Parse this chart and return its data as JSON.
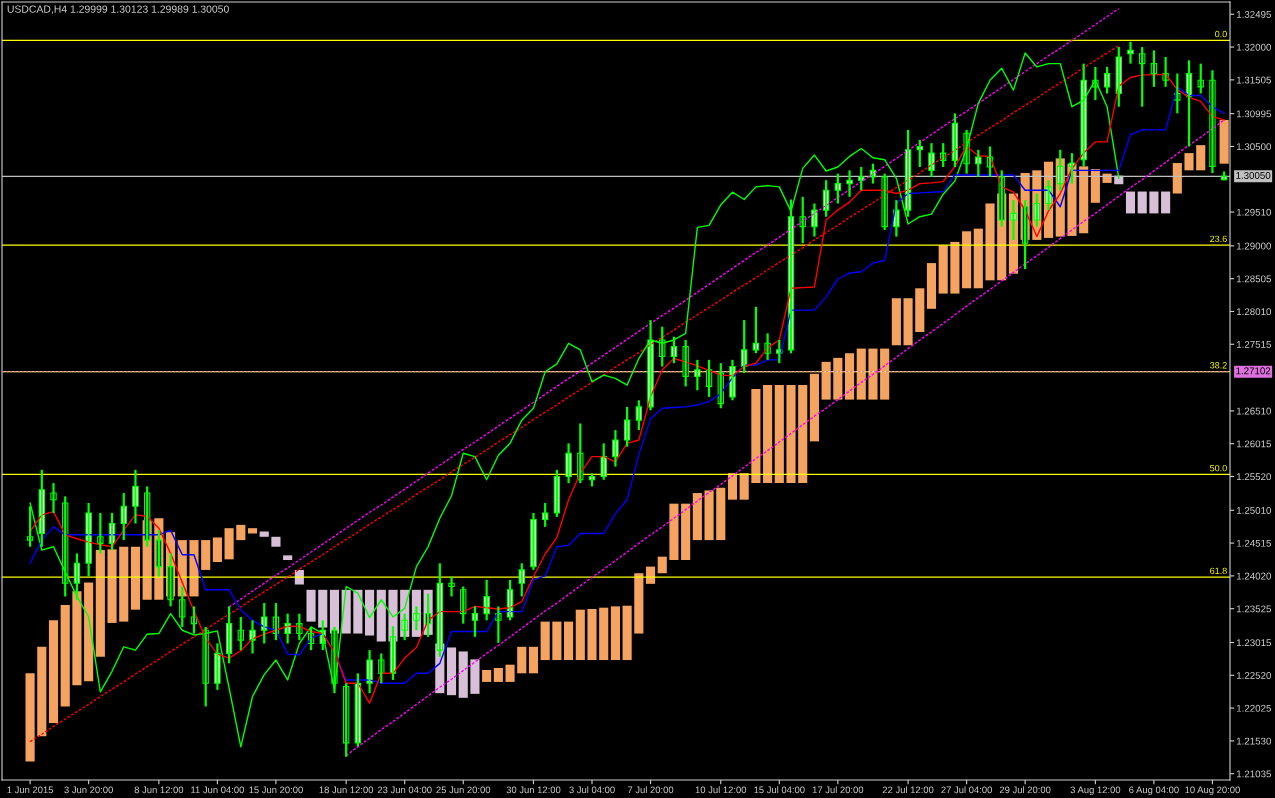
{
  "chart_data": {
    "type": "candlestick",
    "title": "USDCAD,H4 1.29999 1.30123 1.29989 1.30050",
    "categories": [
      "1 Jun 2015",
      null,
      null,
      null,
      null,
      "3 Jun 20:00",
      null,
      null,
      null,
      null,
      null,
      "8 Jun 12:00",
      null,
      null,
      null,
      null,
      "11 Jun 04:00",
      null,
      null,
      null,
      null,
      "15 Jun 20:00",
      null,
      null,
      null,
      null,
      null,
      "18 Jun 12:00",
      null,
      null,
      null,
      null,
      "23 Jun 04:00",
      null,
      null,
      null,
      null,
      "25 Jun 20:00",
      null,
      null,
      null,
      null,
      null,
      "30 Jun 12:00",
      null,
      null,
      null,
      null,
      "3 Jul 04:00",
      null,
      null,
      null,
      null,
      "7 Jul 20:00",
      null,
      null,
      null,
      null,
      null,
      "10 Jul 12:00",
      null,
      null,
      null,
      null,
      "15 Jul 04:00",
      null,
      null,
      null,
      null,
      "17 Jul 20:00",
      null,
      null,
      null,
      null,
      null,
      "22 Jul 12:00",
      null,
      null,
      null,
      null,
      "27 Jul 04:00",
      null,
      null,
      null,
      null,
      "29 Jul 20:00",
      null,
      null,
      null,
      null,
      null,
      "3 Aug 12:00",
      null,
      null,
      null,
      null,
      "6 Aug 04:00",
      null,
      null,
      null,
      null,
      "10 Aug 20:00",
      null
    ],
    "ylim": [
      1.2094,
      1.3268
    ],
    "yticks": [
      1.32495,
      {
        "value": 1.32,
        "label": "1.32000"
      },
      1.31505,
      1.30995,
      {
        "value": 1.305,
        "label": "1.30500"
      },
      {
        "value": 1.2951,
        "label": "1.29510"
      },
      {
        "value": 1.29,
        "label": "1.29000"
      },
      1.28505,
      {
        "value": 1.2801,
        "label": "1.28010"
      },
      1.27515,
      {
        "value": 1.2651,
        "label": "1.26510"
      },
      1.26015,
      {
        "value": 1.2552,
        "label": "1.25520"
      },
      {
        "value": 1.2501,
        "label": "1.25010"
      },
      1.24515,
      {
        "value": 1.2402,
        "label": "1.24020"
      },
      1.23525,
      1.23015,
      {
        "value": 1.2252,
        "label": "1.22520"
      },
      1.22025,
      {
        "value": 1.2153,
        "label": "1.21530"
      },
      1.21035
    ],
    "series": [
      {
        "type": "bar",
        "color": "#f4a460",
        "values": [
          0.0133,
          0.0135,
          0.0155,
          0.0153,
          0.0142,
          0.0149,
          0.0161,
          0.0111,
          0.0113,
          0.0095,
          0.012,
          0.0123,
          0.0097,
          0.0085,
          0.0085,
          0.0045,
          0.0037,
          0.0047,
          0.0023,
          0.0008,
          null,
          null,
          null,
          null,
          null,
          null,
          null,
          null,
          null,
          null,
          null,
          null,
          null,
          null,
          null,
          null,
          null,
          null,
          null,
          0.0018,
          0.0021,
          0.0026,
          0.004,
          0.004,
          0.0058,
          0.0058,
          0.0058,
          0.0076,
          0.0077,
          0.0079,
          0.0081,
          0.0082,
          0.0091,
          0.0026,
          0.0025,
          0.0085,
          0.0085,
          0.0071,
          0.0075,
          0.0079,
          0.004,
          0.004,
          0.0142,
          0.0148,
          0.0148,
          0.0148,
          0.0148,
          0.0102,
          0.0057,
          0.0063,
          0.007,
          0.0077,
          0.0077,
          0.0077,
          0.0071,
          0.0071,
          0.0066,
          0.0069,
          0.0073,
          0.0078,
          0.0086,
          0.009,
          0.0116,
          0.0131,
          0.0121,
          0.0101,
          0.0105,
          0.0115,
          0.0118,
          0.0109,
          0.0101,
          0.0051,
          0.0014,
          null,
          null,
          null,
          null,
          null,
          0.0046,
          0.0026,
          0.0038,
          null,
          0.0066
        ],
        "base": [
          1.2122,
          1.216,
          1.218,
          1.2205,
          1.2237,
          1.2243,
          1.228,
          1.2331,
          1.2333,
          1.2351,
          1.2366,
          1.2366,
          1.2371,
          1.2371,
          1.2371,
          1.2411,
          1.2423,
          1.2427,
          1.2456,
          1.2466,
          null,
          null,
          null,
          null,
          null,
          null,
          null,
          null,
          null,
          null,
          null,
          null,
          null,
          null,
          null,
          null,
          null,
          null,
          null,
          1.2242,
          1.2242,
          1.2242,
          1.2255,
          1.2255,
          1.2275,
          1.2275,
          1.2275,
          1.2275,
          1.2275,
          1.2275,
          1.2275,
          1.2275,
          1.2315,
          1.239,
          1.2406,
          1.2426,
          1.2426,
          1.2456,
          1.2456,
          1.2456,
          1.2517,
          1.2517,
          1.2542,
          1.2542,
          1.2542,
          1.2542,
          1.2542,
          1.2605,
          1.2668,
          1.2668,
          1.2668,
          1.2668,
          1.2668,
          1.2668,
          1.275,
          1.275,
          1.277,
          1.2805,
          1.2828,
          1.2828,
          1.2836,
          1.2836,
          1.2848,
          1.2848,
          1.2858,
          1.2909,
          1.2909,
          1.2912,
          1.2914,
          1.2915,
          1.2919,
          1.2965,
          1.2995,
          null,
          null,
          null,
          null,
          null,
          1.2979,
          1.3014,
          1.3014,
          null,
          1.3024
        ]
      },
      {
        "type": "bar",
        "color": "#d8bfd8",
        "values": [
          null,
          null,
          null,
          null,
          null,
          null,
          null,
          null,
          null,
          null,
          null,
          null,
          null,
          null,
          null,
          null,
          null,
          null,
          null,
          null,
          0.0008,
          0.0015,
          0.0007,
          0.0022,
          0.0048,
          0.0057,
          0.0066,
          0.0066,
          0.0066,
          0.0069,
          0.0078,
          0.0078,
          0.0071,
          0.0071,
          0.0068,
          0.0075,
          0.0072,
          0.007,
          0.0052,
          null,
          null,
          null,
          null,
          null,
          null,
          null,
          null,
          null,
          null,
          null,
          null,
          null,
          null,
          null,
          null,
          null,
          null,
          null,
          null,
          null,
          null,
          null,
          null,
          null,
          null,
          null,
          null,
          null,
          null,
          null,
          null,
          null,
          null,
          null,
          null,
          null,
          null,
          null,
          null,
          null,
          null,
          null,
          null,
          null,
          null,
          null,
          null,
          null,
          null,
          null,
          null,
          null,
          null,
          0.0013,
          0.0033,
          0.0033,
          0.0033,
          0.0033,
          null,
          null,
          null,
          null,
          null
        ],
        "base": [
          null,
          null,
          null,
          null,
          null,
          null,
          null,
          null,
          null,
          null,
          null,
          null,
          null,
          null,
          null,
          null,
          null,
          null,
          null,
          null,
          1.2461,
          1.2446,
          1.2426,
          1.2389,
          1.2333,
          1.2324,
          1.2315,
          1.2315,
          1.2315,
          1.2312,
          1.2303,
          1.2303,
          1.231,
          1.231,
          1.2313,
          1.2225,
          1.2222,
          1.2218,
          1.2224,
          null,
          null,
          null,
          null,
          null,
          null,
          null,
          null,
          null,
          null,
          null,
          null,
          null,
          null,
          null,
          null,
          null,
          null,
          null,
          null,
          null,
          null,
          null,
          null,
          null,
          null,
          null,
          null,
          null,
          null,
          null,
          null,
          null,
          null,
          null,
          null,
          null,
          null,
          null,
          null,
          null,
          null,
          null,
          null,
          null,
          null,
          null,
          null,
          null,
          null,
          null,
          null,
          null,
          null,
          1.2993,
          1.2949,
          1.2949,
          1.2949,
          1.2949,
          null,
          null,
          null,
          null,
          null
        ]
      },
      {
        "type": "line",
        "color": "#ff0000",
        "line_style": "dashed",
        "values": [
          1.2152,
          1.2163,
          1.2175,
          1.2186,
          1.2197,
          1.2208,
          1.222,
          1.2231,
          1.2242,
          1.2254,
          1.2265,
          1.2276,
          1.2288,
          1.2299,
          1.231,
          1.2321,
          1.2333,
          1.2344,
          1.2355,
          1.2367,
          1.2378,
          1.2389,
          1.24,
          1.2412,
          1.2423,
          1.2434,
          1.2446,
          1.2457,
          1.2468,
          1.248,
          1.2491,
          1.2502,
          1.2513,
          1.2525,
          1.2536,
          1.2547,
          1.2559,
          1.257,
          1.2581,
          1.2592,
          1.2604,
          1.2615,
          1.2626,
          1.2638,
          1.2649,
          1.266,
          1.2672,
          1.2683,
          1.2694,
          1.2705,
          1.2717,
          1.2728,
          1.2739,
          1.2751,
          1.2762,
          1.2773,
          1.2785,
          1.2796,
          1.2807,
          1.2818,
          1.283,
          1.2841,
          1.2852,
          1.2864,
          1.2875,
          1.2886,
          1.2897,
          1.2909,
          1.292,
          1.2931,
          1.2943,
          1.2954,
          1.2965,
          1.2977,
          1.2988,
          1.2999,
          1.301,
          1.3022,
          1.3033,
          1.3044,
          1.3056,
          1.3067,
          1.3078,
          1.3089,
          1.3101,
          1.3112,
          1.3123,
          1.3135,
          1.3146,
          1.3157,
          1.3169,
          1.318,
          1.3191,
          1.3202,
          null,
          null,
          null,
          null,
          null,
          null,
          null,
          null,
          null
        ]
      },
      {
        "type": "line",
        "color": "#ff00ff",
        "line_style": "dashed",
        "values": [
          null,
          null,
          null,
          null,
          null,
          null,
          null,
          null,
          null,
          null,
          null,
          null,
          null,
          null,
          null,
          null,
          null,
          1.2355,
          1.2367,
          1.2379,
          1.2391,
          1.2403,
          1.2414,
          1.2426,
          1.2438,
          1.245,
          1.2462,
          1.2474,
          1.2486,
          1.2498,
          1.2509,
          1.2521,
          1.2533,
          1.2545,
          1.2557,
          1.2569,
          1.2581,
          1.2593,
          1.2604,
          1.2616,
          1.2628,
          1.264,
          1.2652,
          1.2664,
          1.2676,
          1.2688,
          1.27,
          1.2711,
          1.2723,
          1.2735,
          1.2747,
          1.2759,
          1.2771,
          1.2783,
          1.2795,
          1.2806,
          1.2818,
          1.283,
          1.2842,
          1.2854,
          1.2866,
          1.2878,
          1.289,
          1.2901,
          1.2913,
          1.2925,
          1.2937,
          1.2949,
          1.2961,
          1.2973,
          1.2985,
          1.2997,
          1.3008,
          1.302,
          1.3032,
          1.3044,
          1.3056,
          1.3068,
          1.308,
          1.3092,
          1.3103,
          1.3115,
          1.3127,
          1.3139,
          1.3151,
          1.3163,
          1.3175,
          1.3187,
          1.3198,
          1.321,
          1.3222,
          1.3234,
          1.3246,
          1.3258,
          null,
          null,
          null,
          null,
          null,
          null,
          null,
          null,
          null
        ]
      },
      {
        "type": "line",
        "color": "#ff00ff",
        "line_style": "dashed",
        "values": [
          null,
          null,
          null,
          null,
          null,
          null,
          null,
          null,
          null,
          null,
          null,
          null,
          null,
          null,
          null,
          null,
          null,
          null,
          null,
          null,
          null,
          null,
          null,
          null,
          null,
          null,
          null,
          1.2131,
          1.2144,
          1.2157,
          1.217,
          1.2182,
          1.2195,
          1.2208,
          1.2221,
          1.2234,
          1.2246,
          1.2259,
          1.2272,
          1.2285,
          1.2297,
          1.231,
          1.2323,
          1.2336,
          1.2349,
          1.2361,
          1.2374,
          1.2387,
          1.24,
          1.2412,
          1.2425,
          1.2438,
          1.2451,
          1.2464,
          1.2476,
          1.2489,
          1.2502,
          1.2515,
          1.2528,
          1.254,
          1.2553,
          1.2566,
          1.2579,
          1.2591,
          1.2604,
          1.2617,
          1.263,
          1.2643,
          1.2655,
          1.2668,
          1.2681,
          1.2694,
          1.2706,
          1.2719,
          1.2732,
          1.2745,
          1.2758,
          1.277,
          1.2783,
          1.2796,
          1.2809,
          1.2822,
          1.2834,
          1.2847,
          1.286,
          1.2873,
          1.2885,
          1.2898,
          1.2911,
          1.2924,
          1.2937,
          1.2949,
          1.2962,
          1.2975,
          1.2988,
          1.3,
          1.3013,
          1.3026,
          1.3039,
          1.3052,
          1.3064,
          1.3077,
          1.309
        ]
      },
      {
        "type": "line",
        "color": "#00ff00",
        "values": [
          1.2512,
          1.2441,
          1.2446,
          1.2408,
          1.2371,
          1.234,
          1.2227,
          1.2258,
          1.2295,
          1.229,
          1.2314,
          1.2315,
          1.2345,
          1.232,
          1.2313,
          1.2315,
          1.2319,
          1.2233,
          1.2144,
          1.222,
          1.2253,
          1.2275,
          1.2245,
          1.23,
          1.2325,
          1.2315,
          1.223,
          1.2386,
          1.2376,
          1.2339,
          1.2366,
          1.234,
          1.2353,
          1.2416,
          1.2446,
          1.2489,
          1.2523,
          1.2587,
          1.2582,
          1.2547,
          1.2584,
          1.2602,
          1.2637,
          1.2655,
          1.271,
          1.2722,
          1.2753,
          1.2743,
          1.2695,
          1.2705,
          1.27,
          1.269,
          1.273,
          1.2758,
          1.2753,
          1.2758,
          1.2768,
          1.2928,
          1.2931,
          1.2962,
          1.2981,
          1.297,
          1.2989,
          1.2991,
          1.2989,
          1.2952,
          1.3017,
          1.3037,
          1.3013,
          1.3019,
          1.3035,
          1.3047,
          1.3033,
          1.303,
          1.3002,
          1.2933,
          1.2944,
          1.2948,
          1.2978,
          1.2998,
          1.3047,
          1.3115,
          1.315,
          1.3168,
          1.3135,
          1.3191,
          1.317,
          1.3175,
          1.3175,
          1.311,
          1.312,
          1.315,
          1.311,
          1.3002,
          null,
          null,
          null,
          null,
          null,
          null,
          null,
          null,
          null
        ]
      },
      {
        "type": "line",
        "color": "#0000ff",
        "values": [
          1.2421,
          1.2456,
          1.2476,
          1.2464,
          1.2464,
          1.2464,
          1.2464,
          1.2464,
          1.2464,
          1.2464,
          1.2464,
          1.2464,
          1.2471,
          1.2434,
          1.2434,
          1.2381,
          1.2381,
          1.2381,
          1.2351,
          1.2335,
          1.2325,
          1.232,
          1.2284,
          1.2283,
          1.2308,
          1.2315,
          1.2288,
          1.2245,
          1.2245,
          1.2245,
          1.224,
          1.224,
          1.224,
          1.2255,
          1.2255,
          1.227,
          1.2318,
          1.2318,
          1.2318,
          1.2318,
          1.2348,
          1.2348,
          1.2348,
          1.2396,
          1.2402,
          1.2446,
          1.2448,
          1.2466,
          1.2466,
          1.2466,
          1.2496,
          1.2517,
          1.2585,
          1.2639,
          1.2655,
          1.2656,
          1.2657,
          1.266,
          1.2665,
          1.2677,
          1.2701,
          1.272,
          1.272,
          1.2728,
          1.2728,
          1.2803,
          1.2803,
          1.2803,
          1.2823,
          1.285,
          1.2859,
          1.2861,
          1.2874,
          1.2878,
          1.2964,
          1.2979,
          1.298,
          1.2981,
          1.2982,
          1.3007,
          1.3007,
          1.3007,
          1.3007,
          1.3007,
          1.3007,
          1.2984,
          1.2984,
          1.2984,
          1.2959,
          1.3014,
          1.3014,
          1.3014,
          1.3014,
          1.3014,
          1.3068,
          1.3075,
          1.3075,
          1.3075,
          1.314,
          1.3127,
          1.3127,
          1.311,
          1.31
        ]
      },
      {
        "type": "line",
        "color": "#ff0000",
        "values": [
          1.2469,
          1.2494,
          1.2499,
          1.2464,
          1.2458,
          1.2453,
          1.2449,
          1.2446,
          1.2471,
          1.2494,
          1.2492,
          1.2474,
          1.2436,
          1.2392,
          1.2349,
          1.2308,
          1.2284,
          1.2278,
          1.2289,
          1.2307,
          1.2314,
          1.232,
          1.2326,
          1.2326,
          1.2318,
          1.2315,
          1.2287,
          1.224,
          1.224,
          1.221,
          1.2255,
          1.2255,
          1.2278,
          1.2294,
          1.2335,
          1.2348,
          1.2348,
          1.2348,
          1.2356,
          1.2354,
          1.2352,
          1.2354,
          1.2363,
          1.2401,
          1.2435,
          1.246,
          1.2517,
          1.2557,
          1.2582,
          1.2582,
          1.2574,
          1.2602,
          1.2607,
          1.2672,
          1.2713,
          1.273,
          1.2725,
          1.2719,
          1.2712,
          1.2705,
          1.2704,
          1.2718,
          1.2723,
          1.2746,
          1.2758,
          1.2836,
          1.2837,
          1.2838,
          1.2939,
          1.2954,
          1.2966,
          1.2984,
          1.2984,
          1.2984,
          1.2979,
          1.2984,
          1.2994,
          1.2995,
          1.2997,
          1.302,
          1.305,
          1.3036,
          1.3035,
          1.2989,
          1.2981,
          1.2954,
          1.2914,
          1.2953,
          1.2979,
          1.3017,
          1.304,
          1.3057,
          1.3057,
          1.3141,
          1.3154,
          1.3158,
          1.3158,
          1.3159,
          1.3136,
          1.3124,
          1.3118,
          1.3095,
          1.309
        ]
      },
      {
        "color": "#00ff00",
        "ohlc": [
          [
            1.2461,
            1.2507,
            1.2446,
            1.2456
          ],
          [
            1.2466,
            1.2562,
            1.2446,
            1.2532
          ],
          [
            1.2527,
            1.2542,
            1.2497,
            1.2517
          ],
          [
            1.2512,
            1.2522,
            1.2371,
            1.2391
          ],
          [
            1.2391,
            1.2436,
            1.2366,
            1.2421
          ],
          [
            1.2421,
            1.2512,
            1.2401,
            1.2497
          ],
          [
            1.2461,
            1.2497,
            1.2436,
            1.2451
          ],
          [
            1.2451,
            1.2497,
            1.2441,
            1.2481
          ],
          [
            1.2481,
            1.2527,
            1.2456,
            1.2507
          ],
          [
            1.2507,
            1.2562,
            1.2481,
            1.2537
          ],
          [
            1.2527,
            1.2537,
            1.2446,
            1.2456
          ],
          [
            1.2456,
            1.2471,
            1.2401,
            1.2416
          ],
          [
            1.2416,
            1.2436,
            1.2356,
            1.2366
          ],
          [
            1.2366,
            1.2386,
            1.2325,
            1.234
          ],
          [
            1.234,
            1.2356,
            1.2315,
            1.233
          ],
          [
            1.232,
            1.2325,
            1.2205,
            1.224
          ],
          [
            1.224,
            1.23,
            1.223,
            1.2285
          ],
          [
            1.2285,
            1.2356,
            1.227,
            1.233
          ],
          [
            1.232,
            1.234,
            1.229,
            1.2305
          ],
          [
            1.2305,
            1.2335,
            1.2285,
            1.232
          ],
          [
            1.232,
            1.2361,
            1.23,
            1.234
          ],
          [
            1.234,
            1.2361,
            1.2305,
            1.2315
          ],
          [
            1.2315,
            1.2345,
            1.23,
            1.233
          ],
          [
            1.233,
            1.2345,
            1.2305,
            1.2315
          ],
          [
            1.2315,
            1.2325,
            1.229,
            1.23
          ],
          [
            1.23,
            1.2335,
            1.229,
            1.232
          ],
          [
            1.232,
            1.2325,
            1.2225,
            1.224
          ],
          [
            1.2235,
            1.224,
            1.2129,
            1.215
          ],
          [
            1.215,
            1.2255,
            1.2145,
            1.224
          ],
          [
            1.224,
            1.229,
            1.2225,
            1.2275
          ],
          [
            1.2275,
            1.2285,
            1.224,
            1.2255
          ],
          [
            1.2255,
            1.2326,
            1.2245,
            1.231
          ],
          [
            1.232,
            1.2345,
            1.2305,
            1.2335
          ],
          [
            1.2335,
            1.2356,
            1.232,
            1.2345
          ],
          [
            1.2345,
            1.2375,
            1.231,
            1.233
          ],
          [
            1.229,
            1.2421,
            1.228,
            1.2391
          ],
          [
            1.2391,
            1.2401,
            1.2371,
            1.2386
          ],
          [
            1.2381,
            1.2386,
            1.233,
            1.2345
          ],
          [
            1.2335,
            1.2356,
            1.231,
            1.2345
          ],
          [
            1.2345,
            1.2396,
            1.2335,
            1.2371
          ],
          [
            1.2345,
            1.2356,
            1.2301,
            1.2335
          ],
          [
            1.234,
            1.2396,
            1.2335,
            1.2381
          ],
          [
            1.2391,
            1.2421,
            1.2371,
            1.2411
          ],
          [
            1.2416,
            1.2497,
            1.2411,
            1.2487
          ],
          [
            1.2487,
            1.2512,
            1.2476,
            1.2497
          ],
          [
            1.2497,
            1.2562,
            1.2491,
            1.2552
          ],
          [
            1.2552,
            1.2602,
            1.2542,
            1.2587
          ],
          [
            1.2587,
            1.2632,
            1.2542,
            1.2547
          ],
          [
            1.2547,
            1.2557,
            1.2537,
            1.2552
          ],
          [
            1.2552,
            1.2602,
            1.2547,
            1.2582
          ],
          [
            1.2582,
            1.2622,
            1.2567,
            1.2607
          ],
          [
            1.2607,
            1.2657,
            1.2597,
            1.2637
          ],
          [
            1.2637,
            1.2667,
            1.2622,
            1.2657
          ],
          [
            1.2657,
            1.2788,
            1.2652,
            1.2758
          ],
          [
            1.2758,
            1.2778,
            1.2718,
            1.2733
          ],
          [
            1.2733,
            1.2763,
            1.2723,
            1.2748
          ],
          [
            1.2748,
            1.2758,
            1.2688,
            1.2703
          ],
          [
            1.2703,
            1.2728,
            1.2682,
            1.2713
          ],
          [
            1.2713,
            1.2728,
            1.2672,
            1.2688
          ],
          [
            1.2708,
            1.2723,
            1.2655,
            1.2662
          ],
          [
            1.2672,
            1.2728,
            1.2667,
            1.2718
          ],
          [
            1.2718,
            1.2788,
            1.2708,
            1.2743
          ],
          [
            1.2743,
            1.2808,
            1.2738,
            1.2753
          ],
          [
            1.2753,
            1.2768,
            1.2728,
            1.2738
          ],
          [
            1.2738,
            1.2758,
            1.2723,
            1.2743
          ],
          [
            1.2743,
            1.297,
            1.2738,
            1.2944
          ],
          [
            1.2944,
            1.2974,
            1.2904,
            1.2929
          ],
          [
            1.2929,
            1.2964,
            1.2914,
            1.2954
          ],
          [
            1.2954,
            1.2999,
            1.2944,
            1.2984
          ],
          [
            1.2984,
            1.3009,
            1.2964,
            1.2994
          ],
          [
            1.2994,
            1.3014,
            1.2974,
            1.2999
          ],
          [
            1.2999,
            1.3019,
            1.2984,
            1.3004
          ],
          [
            1.3004,
            1.3024,
            1.2994,
            1.3014
          ],
          [
            1.3004,
            1.3009,
            1.2924,
            1.2929
          ],
          [
            1.2929,
            1.2969,
            1.2914,
            1.2954
          ],
          [
            1.2954,
            1.3075,
            1.2944,
            1.3045
          ],
          [
            1.3045,
            1.306,
            1.3019,
            1.305
          ],
          [
            1.3014,
            1.3055,
            1.3004,
            1.304
          ],
          [
            1.304,
            1.3055,
            1.3019,
            1.3029
          ],
          [
            1.3029,
            1.31,
            1.3019,
            1.3085
          ],
          [
            1.307,
            1.3075,
            1.3009,
            1.3024
          ],
          [
            1.3024,
            1.3045,
            1.3004,
            1.3034
          ],
          [
            1.3034,
            1.305,
            1.3004,
            1.3019
          ],
          [
            1.3004,
            1.3014,
            1.2929,
            1.2939
          ],
          [
            1.2939,
            1.2969,
            1.2909,
            1.2949
          ],
          [
            1.2959,
            1.2969,
            1.2865,
            1.2904
          ],
          [
            1.2939,
            1.2979,
            1.2929,
            1.2964
          ],
          [
            1.2964,
            1.2999,
            1.2954,
            1.2989
          ],
          [
            1.2994,
            1.3045,
            1.2984,
            1.302
          ],
          [
            1.302,
            1.304,
            1.2994,
            1.3025
          ],
          [
            1.303,
            1.3175,
            1.302,
            1.315
          ],
          [
            1.315,
            1.317,
            1.312,
            1.314
          ],
          [
            1.314,
            1.317,
            1.313,
            1.316
          ],
          [
            1.313,
            1.32,
            1.311,
            1.3185
          ],
          [
            1.319,
            1.3208,
            1.3175,
            1.3195
          ],
          [
            1.319,
            1.32,
            1.311,
            1.3175
          ],
          [
            1.3175,
            1.3195,
            1.314,
            1.316
          ],
          [
            1.316,
            1.3185,
            1.314,
            1.315
          ],
          [
            1.313,
            1.316,
            1.31,
            1.312
          ],
          [
            1.3125,
            1.318,
            1.305,
            1.316
          ],
          [
            1.315,
            1.3175,
            1.313,
            1.314
          ],
          [
            1.315,
            1.3165,
            1.301,
            1.302
          ],
          [
            1.29999,
            1.30123,
            1.29989,
            1.3005
          ]
        ]
      }
    ],
    "ref_lines": [
      {
        "axis": "y",
        "value": 1.321,
        "color": "#ffff00"
      },
      {
        "axis": "y",
        "value": 1.2901,
        "color": "#ffff00"
      },
      {
        "axis": "y",
        "value": 1.27102,
        "color": "#ffff00"
      },
      {
        "axis": "y",
        "value": 1.2555,
        "color": "#ffff00"
      },
      {
        "axis": "y",
        "value": 1.24,
        "color": "#ffff00"
      },
      {
        "axis": "y",
        "value": 1.3005,
        "label": "1.30050",
        "color": "#c0c0c0"
      },
      {
        "axis": "y",
        "value": 1.27102,
        "label": "1.27102",
        "color": "#e070e0",
        "line_style": "dashed"
      }
    ],
    "annotations": [
      {
        "text": "0.0",
        "y": 1.321
      },
      {
        "text": "23.6",
        "y": 1.2901
      },
      {
        "text": "38.2",
        "y": 1.27102
      },
      {
        "text": "50.0",
        "y": 1.2555
      },
      {
        "text": "61.8",
        "y": 1.24
      }
    ]
  }
}
